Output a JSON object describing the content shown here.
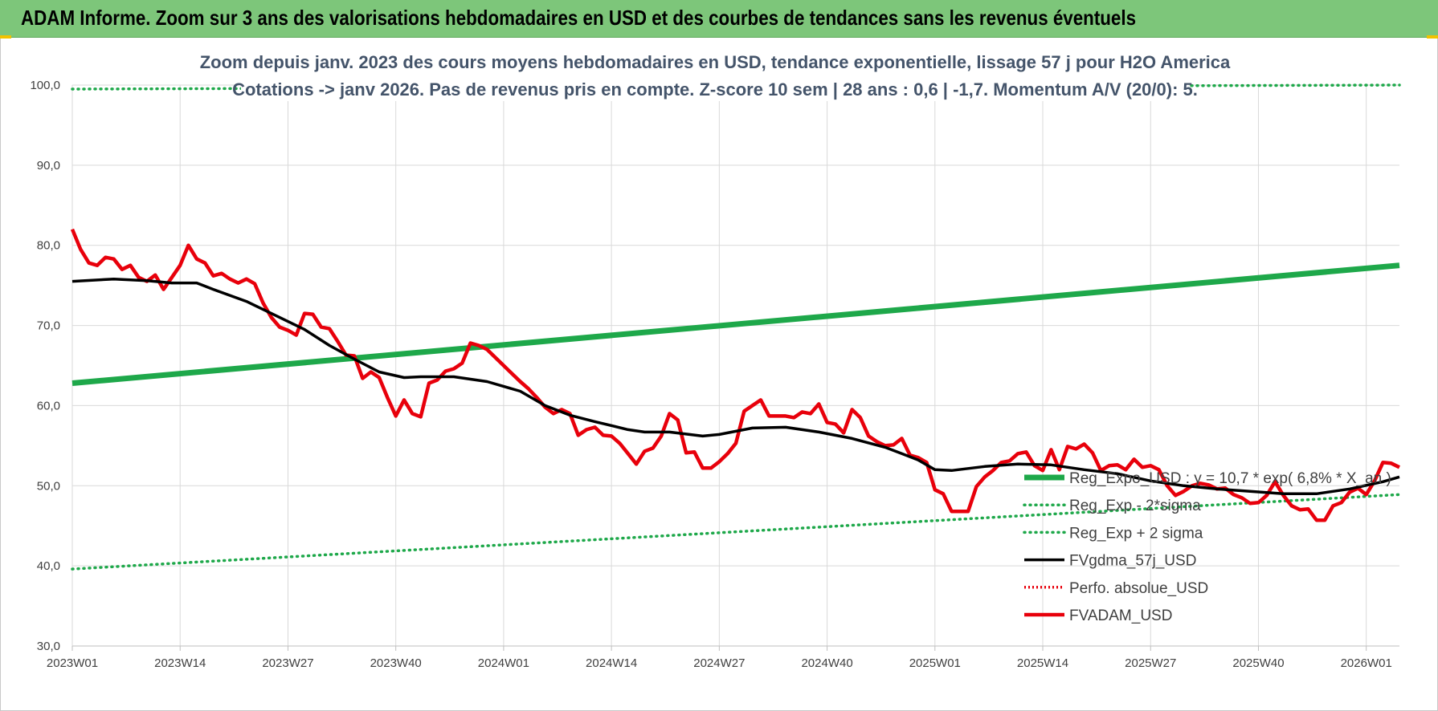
{
  "banner": {
    "title": "ADAM Informe. Zoom sur 3 ans des valorisations hebdomadaires en USD et des courbes de tendances sans les revenus éventuels"
  },
  "colors": {
    "banner": "#7dc67a",
    "trend": "#1ea84a",
    "sigma": "#1ea84a",
    "fvgdma": "#000000",
    "perfo": "#e8000b",
    "fvadam": "#e8000b",
    "grid": "#d9d9d9"
  },
  "chart_data": {
    "type": "line",
    "title": "Zoom depuis janv. 2023 des cours moyens hebdomadaires en USD, tendance exponentielle, lissage 57 j pour H2O America",
    "subtitle": "Cotations -> janv 2026. Pas de revenus pris en compte. Z-score 10 sem | 28 ans : 0,6 | -1,7. Momentum A/V (20/0): 5.",
    "xlabel": "",
    "ylabel": "",
    "ylim": [
      30,
      100
    ],
    "y_ticks": [
      "30,0",
      "40,0",
      "50,0",
      "60,0",
      "70,0",
      "80,0",
      "90,0",
      "100,0"
    ],
    "x_ticks": [
      "2023W01",
      "2023W14",
      "2023W27",
      "2023W40",
      "2024W01",
      "2024W14",
      "2024W27",
      "2024W40",
      "2025W01",
      "2025W14",
      "2025W27",
      "2025W40",
      "2026W01"
    ],
    "grid": true,
    "legend_position": "bottom-right",
    "series": [
      {
        "name": "Reg_Expo_USD : y = 10,7 * exp( 6,8% * X_an )",
        "style": "thick-solid",
        "points": [
          [
            "2023W01",
            62.8
          ],
          [
            "2026W05",
            77.5
          ]
        ]
      },
      {
        "name": "Reg_Exp - 2*sigma",
        "style": "dotted",
        "points": [
          [
            "2023W01",
            39.6
          ],
          [
            "2026W05",
            48.9
          ]
        ]
      },
      {
        "name": "Reg_Exp + 2 sigma",
        "style": "dotted",
        "points": [
          [
            "2023W01",
            99.5
          ],
          [
            "2026W05",
            100.0
          ]
        ]
      },
      {
        "name": "FVgdma_57j_USD",
        "style": "solid",
        "points": [
          [
            "2023W01",
            75.5
          ],
          [
            "2023W06",
            75.8
          ],
          [
            "2023W10",
            75.6
          ],
          [
            "2023W13",
            75.3
          ],
          [
            "2023W16",
            75.3
          ],
          [
            "2023W18",
            74.5
          ],
          [
            "2023W22",
            73.0
          ],
          [
            "2023W25",
            71.5
          ],
          [
            "2023W29",
            69.5
          ],
          [
            "2023W32",
            67.5
          ],
          [
            "2023W35",
            65.8
          ],
          [
            "2023W38",
            64.2
          ],
          [
            "2023W41",
            63.5
          ],
          [
            "2023W43",
            63.6
          ],
          [
            "2023W47",
            63.6
          ],
          [
            "2023W51",
            63.0
          ],
          [
            "2024W03",
            61.8
          ],
          [
            "2024W06",
            60.0
          ],
          [
            "2024W09",
            58.8
          ],
          [
            "2024W12",
            58.0
          ],
          [
            "2024W16",
            57.0
          ],
          [
            "2024W18",
            56.7
          ],
          [
            "2024W21",
            56.7
          ],
          [
            "2024W25",
            56.2
          ],
          [
            "2024W27",
            56.4
          ],
          [
            "2024W31",
            57.2
          ],
          [
            "2024W35",
            57.3
          ],
          [
            "2024W39",
            56.7
          ],
          [
            "2024W43",
            55.9
          ],
          [
            "2024W47",
            54.8
          ],
          [
            "2024W49",
            54.0
          ],
          [
            "2024W51",
            53.2
          ],
          [
            "2025W01",
            52.0
          ],
          [
            "2025W03",
            51.9
          ],
          [
            "2025W07",
            52.4
          ],
          [
            "2025W11",
            52.7
          ],
          [
            "2025W15",
            52.6
          ],
          [
            "2025W19",
            52.0
          ],
          [
            "2025W23",
            51.5
          ],
          [
            "2025W27",
            50.6
          ],
          [
            "2025W31",
            50.0
          ],
          [
            "2025W35",
            49.6
          ],
          [
            "2025W39",
            49.3
          ],
          [
            "2025W43",
            49.0
          ],
          [
            "2025W47",
            49.0
          ],
          [
            "2025W51",
            49.6
          ],
          [
            "2026W03",
            50.5
          ],
          [
            "2026W05",
            51.1
          ]
        ]
      },
      {
        "name": "Perfo. absolue_USD",
        "style": "dotted",
        "points": []
      },
      {
        "name": "FVADAM_USD",
        "style": "thick-solid",
        "points": [
          [
            "2023W01",
            82.0
          ],
          [
            "2023W02",
            79.5
          ],
          [
            "2023W03",
            77.8
          ],
          [
            "2023W04",
            77.5
          ],
          [
            "2023W05",
            78.5
          ],
          [
            "2023W06",
            78.3
          ],
          [
            "2023W07",
            77.0
          ],
          [
            "2023W08",
            77.5
          ],
          [
            "2023W09",
            76.0
          ],
          [
            "2023W10",
            75.5
          ],
          [
            "2023W11",
            76.3
          ],
          [
            "2023W12",
            74.5
          ],
          [
            "2023W13",
            76.0
          ],
          [
            "2023W14",
            77.5
          ],
          [
            "2023W15",
            80.0
          ],
          [
            "2023W16",
            78.3
          ],
          [
            "2023W17",
            77.8
          ],
          [
            "2023W18",
            76.2
          ],
          [
            "2023W19",
            76.5
          ],
          [
            "2023W20",
            75.8
          ],
          [
            "2023W21",
            75.3
          ],
          [
            "2023W22",
            75.8
          ],
          [
            "2023W23",
            75.2
          ],
          [
            "2023W24",
            72.8
          ],
          [
            "2023W25",
            71.0
          ],
          [
            "2023W26",
            69.8
          ],
          [
            "2023W27",
            69.4
          ],
          [
            "2023W28",
            68.8
          ],
          [
            "2023W29",
            71.5
          ],
          [
            "2023W30",
            71.4
          ],
          [
            "2023W31",
            69.8
          ],
          [
            "2023W32",
            69.6
          ],
          [
            "2023W33",
            68.0
          ],
          [
            "2023W34",
            66.3
          ],
          [
            "2023W35",
            66.2
          ],
          [
            "2023W36",
            63.4
          ],
          [
            "2023W37",
            64.2
          ],
          [
            "2023W38",
            63.5
          ],
          [
            "2023W39",
            61.0
          ],
          [
            "2023W40",
            58.7
          ],
          [
            "2023W41",
            60.7
          ],
          [
            "2023W42",
            59.0
          ],
          [
            "2023W43",
            58.6
          ],
          [
            "2023W44",
            62.8
          ],
          [
            "2023W45",
            63.2
          ],
          [
            "2023W46",
            64.3
          ],
          [
            "2023W47",
            64.6
          ],
          [
            "2023W48",
            65.3
          ],
          [
            "2023W49",
            67.8
          ],
          [
            "2023W50",
            67.5
          ],
          [
            "2023W51",
            67.0
          ],
          [
            "2023W52",
            66.0
          ],
          [
            "2024W01",
            65.0
          ],
          [
            "2024W02",
            64.0
          ],
          [
            "2024W03",
            63.0
          ],
          [
            "2024W04",
            62.1
          ],
          [
            "2024W05",
            61.0
          ],
          [
            "2024W06",
            59.8
          ],
          [
            "2024W07",
            59.0
          ],
          [
            "2024W08",
            59.5
          ],
          [
            "2024W09",
            59.0
          ],
          [
            "2024W10",
            56.3
          ],
          [
            "2024W11",
            57.0
          ],
          [
            "2024W12",
            57.3
          ],
          [
            "2024W13",
            56.3
          ],
          [
            "2024W14",
            56.2
          ],
          [
            "2024W15",
            55.3
          ],
          [
            "2024W16",
            54.0
          ],
          [
            "2024W17",
            52.7
          ],
          [
            "2024W18",
            54.3
          ],
          [
            "2024W19",
            54.7
          ],
          [
            "2024W20",
            56.2
          ],
          [
            "2024W21",
            59.0
          ],
          [
            "2024W22",
            58.2
          ],
          [
            "2024W23",
            54.1
          ],
          [
            "2024W24",
            54.2
          ],
          [
            "2024W25",
            52.2
          ],
          [
            "2024W26",
            52.2
          ],
          [
            "2024W27",
            53.0
          ],
          [
            "2024W28",
            54.0
          ],
          [
            "2024W29",
            55.3
          ],
          [
            "2024W30",
            59.3
          ],
          [
            "2024W31",
            60.0
          ],
          [
            "2024W32",
            60.7
          ],
          [
            "2024W33",
            58.7
          ],
          [
            "2024W34",
            58.7
          ],
          [
            "2024W35",
            58.7
          ],
          [
            "2024W36",
            58.5
          ],
          [
            "2024W37",
            59.2
          ],
          [
            "2024W38",
            59.0
          ],
          [
            "2024W39",
            60.2
          ],
          [
            "2024W40",
            57.9
          ],
          [
            "2024W41",
            57.7
          ],
          [
            "2024W42",
            56.6
          ],
          [
            "2024W43",
            59.5
          ],
          [
            "2024W44",
            58.5
          ],
          [
            "2024W45",
            56.2
          ],
          [
            "2024W46",
            55.5
          ],
          [
            "2024W47",
            55.0
          ],
          [
            "2024W48",
            55.1
          ],
          [
            "2024W49",
            55.9
          ],
          [
            "2024W50",
            53.8
          ],
          [
            "2024W51",
            53.5
          ],
          [
            "2024W52",
            52.9
          ],
          [
            "2025W01",
            49.5
          ],
          [
            "2025W02",
            49.0
          ],
          [
            "2025W03",
            46.8
          ],
          [
            "2025W04",
            46.8
          ],
          [
            "2025W05",
            46.8
          ],
          [
            "2025W06",
            49.9
          ],
          [
            "2025W07",
            51.1
          ],
          [
            "2025W08",
            51.9
          ],
          [
            "2025W09",
            52.9
          ],
          [
            "2025W10",
            53.1
          ],
          [
            "2025W11",
            54.0
          ],
          [
            "2025W12",
            54.2
          ],
          [
            "2025W13",
            52.5
          ],
          [
            "2025W14",
            51.9
          ],
          [
            "2025W15",
            54.5
          ],
          [
            "2025W16",
            52.0
          ],
          [
            "2025W17",
            54.9
          ],
          [
            "2025W18",
            54.6
          ],
          [
            "2025W19",
            55.2
          ],
          [
            "2025W20",
            54.1
          ],
          [
            "2025W21",
            51.9
          ],
          [
            "2025W22",
            52.5
          ],
          [
            "2025W23",
            52.6
          ],
          [
            "2025W24",
            52.0
          ],
          [
            "2025W25",
            53.3
          ],
          [
            "2025W26",
            52.3
          ],
          [
            "2025W27",
            52.5
          ],
          [
            "2025W28",
            52.0
          ],
          [
            "2025W29",
            50.0
          ],
          [
            "2025W30",
            48.8
          ],
          [
            "2025W31",
            49.3
          ],
          [
            "2025W32",
            50.0
          ],
          [
            "2025W33",
            50.3
          ],
          [
            "2025W34",
            50.1
          ],
          [
            "2025W35",
            49.6
          ],
          [
            "2025W36",
            49.7
          ],
          [
            "2025W37",
            48.9
          ],
          [
            "2025W38",
            48.5
          ],
          [
            "2025W39",
            47.8
          ],
          [
            "2025W40",
            47.9
          ],
          [
            "2025W41",
            48.8
          ],
          [
            "2025W42",
            50.5
          ],
          [
            "2025W43",
            48.8
          ],
          [
            "2025W44",
            47.5
          ],
          [
            "2025W45",
            47.0
          ],
          [
            "2025W46",
            47.1
          ],
          [
            "2025W47",
            45.7
          ],
          [
            "2025W48",
            45.7
          ],
          [
            "2025W49",
            47.5
          ],
          [
            "2025W50",
            47.9
          ],
          [
            "2025W51",
            49.2
          ],
          [
            "2025W52",
            49.7
          ],
          [
            "2026W01",
            48.9
          ],
          [
            "2026W02",
            50.6
          ],
          [
            "2026W03",
            52.9
          ],
          [
            "2026W04",
            52.8
          ],
          [
            "2026W05",
            52.3
          ]
        ]
      }
    ]
  }
}
